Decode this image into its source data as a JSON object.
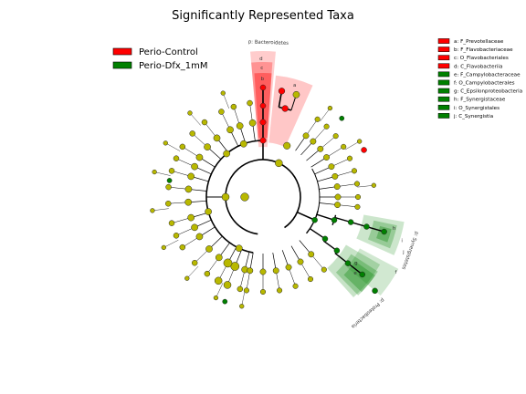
{
  "title": "Significantly Represented Taxa",
  "legend": [
    {
      "label": "Perio-Control",
      "color": "#ff0000"
    },
    {
      "label": "Perio-Dfx_1mM",
      "color": "#008000"
    }
  ],
  "taxa": [
    {
      "key": "a",
      "label": "a: F_Prevotellaceae",
      "group": "control"
    },
    {
      "key": "b",
      "label": "b: F_Flavobacteriaceae",
      "group": "control"
    },
    {
      "key": "c",
      "label": "c: O_Flavobacteriales",
      "group": "control"
    },
    {
      "key": "d",
      "label": "d: C_Flavobacteriia",
      "group": "control"
    },
    {
      "key": "e",
      "label": "e: F_Campylobacteraceae",
      "group": "dfx"
    },
    {
      "key": "f",
      "label": "f: O_Campylobacterales",
      "group": "dfx"
    },
    {
      "key": "g",
      "label": "g: C_Epsilonproteobacteria",
      "group": "dfx"
    },
    {
      "key": "h",
      "label": "h: F_Synergistaceae",
      "group": "dfx"
    },
    {
      "key": "i",
      "label": "i: O_Synergistales",
      "group": "dfx"
    },
    {
      "key": "j",
      "label": "j: C_Synergistia",
      "group": "dfx"
    }
  ],
  "clade_labels": {
    "bacteroidetes": "p: Bacteroidetes",
    "synergistetes": "p: Synergistetes",
    "proteobacteria": "p: Proteobacteria"
  },
  "colors": {
    "control": "#ff0000",
    "dfx": "#008000",
    "node": "#b8b800",
    "edge": "#000000"
  }
}
